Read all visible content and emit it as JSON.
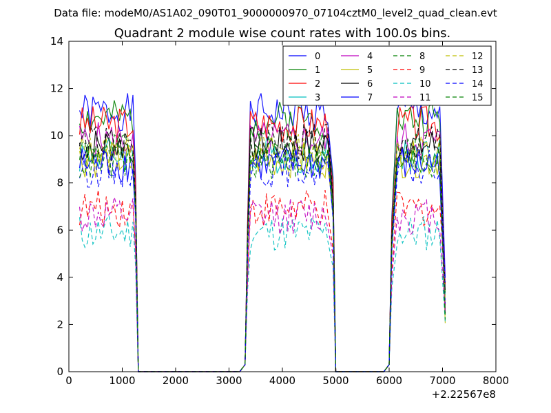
{
  "chart_data": {
    "type": "line",
    "subtitle": "Data file: modeM0/AS1A02_090T01_9000000970_07104cztM0_level2_quad_clean.evt",
    "title": "Quadrant 2 module wise count rates with 100.0s bins.",
    "xlabel": "",
    "ylabel": "",
    "xlim": [
      0,
      8000
    ],
    "ylim": [
      0,
      14
    ],
    "x_ticks": [
      0,
      1000,
      2000,
      3000,
      4000,
      5000,
      6000,
      7000,
      8000
    ],
    "y_ticks": [
      0,
      2,
      4,
      6,
      8,
      10,
      12,
      14
    ],
    "x_offset_label": "+2.22567e8",
    "legend": {
      "placement": "top-right",
      "columns": 4
    },
    "grid": false,
    "series": [
      {
        "name": "0",
        "color": "#0000ff",
        "dash": "solid",
        "level": 11.0,
        "seed": 1
      },
      {
        "name": "1",
        "color": "#008000",
        "dash": "solid",
        "level": 10.7,
        "seed": 2
      },
      {
        "name": "2",
        "color": "#ff0000",
        "dash": "solid",
        "level": 10.5,
        "seed": 3
      },
      {
        "name": "3",
        "color": "#00bfbf",
        "dash": "solid",
        "level": 9.2,
        "seed": 4
      },
      {
        "name": "4",
        "color": "#bf00bf",
        "dash": "solid",
        "level": 9.8,
        "seed": 5
      },
      {
        "name": "5",
        "color": "#bfbf00",
        "dash": "solid",
        "level": 9.0,
        "seed": 6
      },
      {
        "name": "6",
        "color": "#000000",
        "dash": "solid",
        "level": 9.6,
        "seed": 7
      },
      {
        "name": "7",
        "color": "#0000ff",
        "dash": "solid",
        "level": 8.8,
        "seed": 8
      },
      {
        "name": "8",
        "color": "#008000",
        "dash": "dashed",
        "level": 9.4,
        "seed": 9
      },
      {
        "name": "9",
        "color": "#ff0000",
        "dash": "dashed",
        "level": 6.9,
        "seed": 10
      },
      {
        "name": "10",
        "color": "#00bfbf",
        "dash": "dashed",
        "level": 5.9,
        "seed": 11
      },
      {
        "name": "11",
        "color": "#bf00bf",
        "dash": "dashed",
        "level": 6.6,
        "seed": 12
      },
      {
        "name": "12",
        "color": "#bfbf00",
        "dash": "dashed",
        "level": 9.3,
        "seed": 13
      },
      {
        "name": "13",
        "color": "#000000",
        "dash": "dashed",
        "level": 9.7,
        "seed": 14
      },
      {
        "name": "14",
        "color": "#0000ff",
        "dash": "dashed",
        "level": 8.6,
        "seed": 15
      },
      {
        "name": "15",
        "color": "#008000",
        "dash": "dashed",
        "level": 8.9,
        "seed": 16
      }
    ],
    "segments": [
      {
        "x_start": 200,
        "x_end": 1200,
        "shape": "on"
      },
      {
        "x_start": 1250,
        "x_end": 1250,
        "shape": "drop"
      },
      {
        "x_start": 1300,
        "x_end": 3200,
        "shape": "zero"
      },
      {
        "x_start": 3300,
        "x_end": 3300,
        "shape": "rise"
      },
      {
        "x_start": 3400,
        "x_end": 4850,
        "shape": "on"
      },
      {
        "x_start": 4950,
        "x_end": 4950,
        "shape": "drop"
      },
      {
        "x_start": 5000,
        "x_end": 5900,
        "shape": "zero"
      },
      {
        "x_start": 6000,
        "x_end": 6050,
        "shape": "rise"
      },
      {
        "x_start": 6150,
        "x_end": 6950,
        "shape": "on"
      },
      {
        "x_start": 7050,
        "x_end": 7050,
        "shape": "drop-partial"
      }
    ]
  }
}
